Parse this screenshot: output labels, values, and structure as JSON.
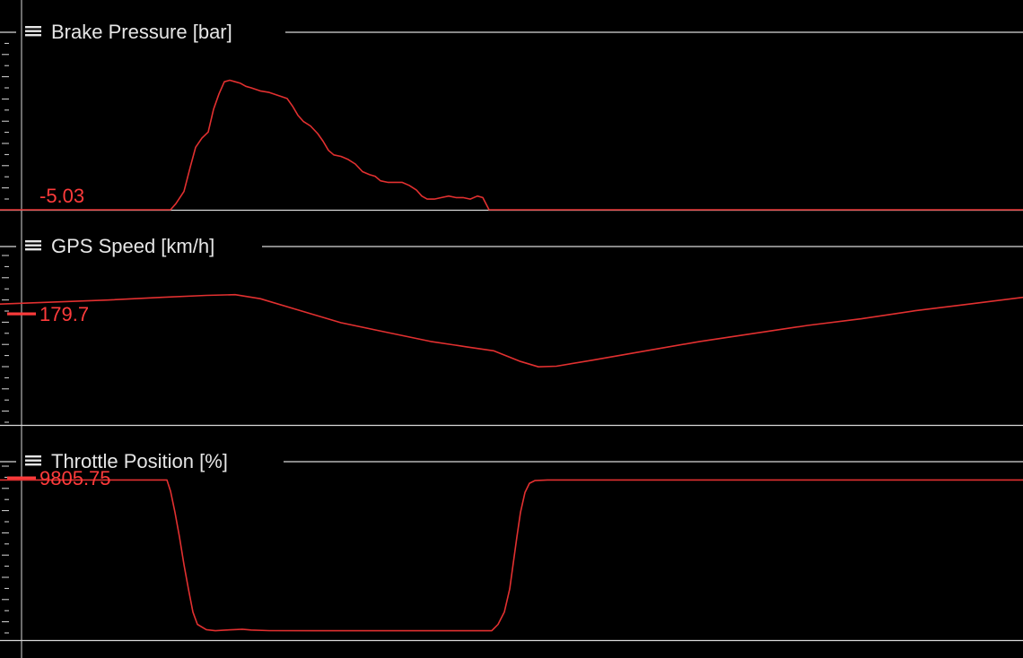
{
  "colors": {
    "background": "#000000",
    "grid": "#d9d9d9",
    "trace": "#e23030",
    "readout": "#ff3b3b",
    "title": "#e6e6e6"
  },
  "icons": {
    "panel_menu": "hamburger-menu-icon"
  },
  "chart_data": [
    {
      "type": "line",
      "title": "Brake Pressure [bar]",
      "readout": "-5.03",
      "cursor_marker": false,
      "x_range": [
        0,
        1140
      ],
      "y_range": [
        0,
        10
      ],
      "series": [
        {
          "x": [
            0,
            190,
            196,
            205,
            212,
            218,
            225,
            232,
            238,
            244,
            250,
            256,
            262,
            268,
            274,
            280,
            290,
            300,
            310,
            320,
            326,
            332,
            338,
            346,
            354,
            360,
            366,
            372,
            380,
            388,
            396,
            404,
            412,
            418,
            424,
            432,
            440,
            448,
            456,
            464,
            470,
            476,
            484,
            492,
            500,
            508,
            516,
            524,
            532,
            538,
            545,
            1140
          ],
          "y": [
            0,
            0,
            0.4,
            1.2,
            2.8,
            4.1,
            4.7,
            5.1,
            6.6,
            7.6,
            8.4,
            8.5,
            8.4,
            8.3,
            8.1,
            8.0,
            7.8,
            7.7,
            7.5,
            7.3,
            6.8,
            6.2,
            5.8,
            5.5,
            5.0,
            4.5,
            3.9,
            3.6,
            3.5,
            3.3,
            3.0,
            2.5,
            2.3,
            2.2,
            1.9,
            1.8,
            1.8,
            1.8,
            1.6,
            1.3,
            0.9,
            0.7,
            0.7,
            0.8,
            0.9,
            0.8,
            0.8,
            0.7,
            0.9,
            0.8,
            0,
            0
          ]
        }
      ]
    },
    {
      "type": "line",
      "title": "GPS Speed [km/h]",
      "readout": "179.7",
      "cursor_marker": true,
      "x_range": [
        0,
        1140
      ],
      "y_range": [
        0,
        10
      ],
      "series": [
        {
          "x": [
            0,
            60,
            120,
            180,
            230,
            262,
            290,
            330,
            380,
            430,
            480,
            520,
            550,
            580,
            600,
            620,
            660,
            720,
            780,
            840,
            900,
            960,
            1020,
            1080,
            1140
          ],
          "y": [
            6.7,
            6.85,
            7.0,
            7.2,
            7.35,
            7.4,
            7.1,
            6.3,
            5.3,
            4.6,
            3.9,
            3.5,
            3.2,
            2.4,
            2.0,
            2.05,
            2.5,
            3.2,
            3.9,
            4.5,
            5.1,
            5.6,
            6.2,
            6.7,
            7.2
          ]
        }
      ]
    },
    {
      "type": "line",
      "title": "Throttle Position [%]",
      "readout": "9805.75",
      "cursor_marker": true,
      "x_range": [
        0,
        1140
      ],
      "y_range": [
        0,
        100
      ],
      "series": [
        {
          "x": [
            0,
            186,
            190,
            195,
            200,
            205,
            210,
            215,
            220,
            230,
            240,
            250,
            260,
            270,
            280,
            300,
            350,
            400,
            450,
            500,
            548,
            555,
            562,
            568,
            572,
            576,
            580,
            585,
            590,
            596,
            610,
            700,
            800,
            900,
            1000,
            1140
          ],
          "y": [
            99.2,
            99.2,
            92,
            78,
            62,
            44,
            28,
            13,
            5,
            1.5,
            0.8,
            1.2,
            1.5,
            1.8,
            1.3,
            0.9,
            0.8,
            0.8,
            0.8,
            0.8,
            0.8,
            5,
            13,
            28,
            45,
            62,
            78,
            91,
            97,
            98.8,
            99.2,
            99.2,
            99.2,
            99.2,
            99.2,
            99.2
          ]
        }
      ]
    }
  ]
}
